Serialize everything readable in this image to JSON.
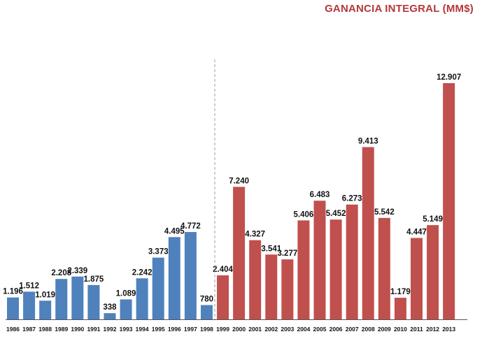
{
  "chart_data": {
    "type": "bar",
    "title": "GANANCIA INTEGRAL (MM$)",
    "xlabel": "",
    "ylabel": "",
    "ylim": [
      0,
      14000
    ],
    "grid": false,
    "legend": "none",
    "colors": {
      "first_period": "#4f81bd",
      "second_period": "#c0504d",
      "title": "#b5373b",
      "divider": "#999999"
    },
    "divider_between": [
      "1998",
      "1999"
    ],
    "categories": [
      "1986",
      "1987",
      "1988",
      "1989",
      "1990",
      "1991",
      "1992",
      "1993",
      "1994",
      "1995",
      "1996",
      "1997",
      "1998",
      "1999",
      "2000",
      "2001",
      "2002",
      "2003",
      "2004",
      "2005",
      "2006",
      "2007",
      "2008",
      "2009",
      "2010",
      "2011",
      "2012",
      "2013"
    ],
    "values": [
      1196,
      1512,
      1019,
      2208,
      2339,
      1875,
      338,
      1089,
      2242,
      3373,
      4495,
      4772,
      780,
      2404,
      7240,
      4327,
      3541,
      3277,
      5406,
      6483,
      5452,
      6273,
      9413,
      5542,
      1179,
      4447,
      5149,
      12907
    ],
    "labels": [
      "1.196",
      "1.512",
      "1.019",
      "2.208",
      "2.339",
      "1.875",
      "338",
      "1.089",
      "2.242",
      "3.373",
      "4.495",
      "4.772",
      "780",
      "2.404",
      "7.240",
      "4.327",
      "3.541",
      "3.277",
      "5.406",
      "6.483",
      "5.452",
      "6.273",
      "9.413",
      "5.542",
      "1.179",
      "4.447",
      "5.149",
      "12.907"
    ]
  }
}
